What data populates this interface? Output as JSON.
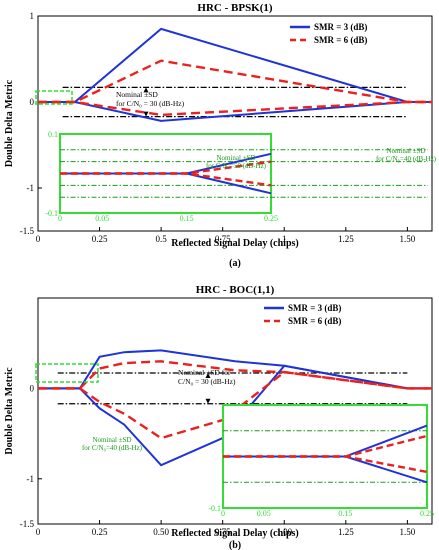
{
  "colors": {
    "smr3": "#1f33d6",
    "smr6": "#e8231f",
    "nominal": "#000000",
    "inset_box": "#33dd33",
    "inset_ref": "#1a9b1a",
    "axis": "#000000"
  },
  "chart_data": [
    {
      "type": "line",
      "title": "HRC - BPSK(1)",
      "xlabel": "Reflected Signal Delay (chips)",
      "ylabel": "Double Delta Metric",
      "xlim": [
        0,
        1.6
      ],
      "ylim": [
        -1.5,
        1
      ],
      "xticks": [
        "0",
        "0.25",
        "0.5",
        "0.75",
        "1",
        "1.25",
        "1.50"
      ],
      "yticks": [
        "1",
        "0",
        "-1",
        "-1.5"
      ],
      "caption": "(a)",
      "legend_position": "top-right",
      "legend": [
        {
          "label": "SMR = 3 (dB)",
          "series": "smr3"
        },
        {
          "label": "SMR = 6 (dB)",
          "series": "smr6"
        }
      ],
      "series": [
        {
          "id": "smr3_up",
          "group": "smr3",
          "style": "solid",
          "x": [
            0,
            0.15,
            0.5,
            1.5,
            1.6
          ],
          "y": [
            0,
            0,
            0.85,
            0,
            0
          ]
        },
        {
          "id": "smr3_lo",
          "group": "smr3",
          "style": "solid",
          "x": [
            0,
            0.15,
            0.5,
            1.5,
            1.6
          ],
          "y": [
            0,
            0,
            -0.22,
            0,
            0
          ]
        },
        {
          "id": "smr6_up",
          "group": "smr6",
          "style": "dashed",
          "x": [
            0,
            0.15,
            0.5,
            1.5,
            1.6
          ],
          "y": [
            0,
            0,
            0.48,
            0,
            0
          ]
        },
        {
          "id": "smr6_lo",
          "group": "smr6",
          "style": "dashed",
          "x": [
            0,
            0.15,
            0.5,
            1.5,
            1.6
          ],
          "y": [
            0,
            0,
            -0.15,
            0,
            0
          ]
        }
      ],
      "nominal": {
        "upper": 0.17,
        "lower": -0.17,
        "x_range": [
          0.1,
          1.5
        ],
        "label_lines": [
          "Nominal ±SD",
          "for C/N₀ = 30 (dB-Hz)"
        ]
      },
      "inset": {
        "xlim": [
          0,
          0.25
        ],
        "ylim": [
          -0.1,
          0.1
        ],
        "xticks": [
          "0",
          "0.05",
          "0.15",
          "0.25"
        ],
        "yticks": [
          "0.1",
          "-0.1"
        ],
        "series": [
          {
            "id": "smr3_up",
            "group": "smr3",
            "style": "solid",
            "x": [
              0,
              0.15,
              0.25
            ],
            "y": [
              0,
              0,
              0.05
            ]
          },
          {
            "id": "smr3_lo",
            "group": "smr3",
            "style": "solid",
            "x": [
              0,
              0.15,
              0.25
            ],
            "y": [
              0,
              0,
              -0.05
            ]
          },
          {
            "id": "smr6_up",
            "group": "smr6",
            "style": "dashed",
            "x": [
              0,
              0.15,
              0.25
            ],
            "y": [
              0,
              0,
              0.03
            ]
          },
          {
            "id": "smr6_lo",
            "group": "smr6",
            "style": "dashed",
            "x": [
              0,
              0.15,
              0.25
            ],
            "y": [
              0,
              0,
              -0.03
            ]
          }
        ],
        "ref_lines": [
          0.06,
          0.03,
          -0.03,
          -0.06
        ],
        "notes": [
          {
            "lines": [
              "Nominal ±SD",
              "for C/N₀=50 (dB-Hz)"
            ]
          },
          {
            "lines": [
              "Nominal ±SD",
              "for C/N₀=40 (dB-Hz)"
            ]
          }
        ]
      }
    },
    {
      "type": "line",
      "title": "HRC - BOC(1,1)",
      "xlabel": "Reflected Signal Delay (chips)",
      "ylabel": "Double Delta Metric",
      "xlim": [
        0,
        1.6
      ],
      "ylim": [
        -1.5,
        1
      ],
      "xticks": [
        "0",
        "0.25",
        "0.50",
        "0.75",
        "1.00",
        "1.25",
        "1.50"
      ],
      "yticks": [
        "0",
        "-1",
        "-1.5"
      ],
      "caption": "(b)",
      "legend_position": "top-right",
      "legend": [
        {
          "label": "SMR = 3 (dB)",
          "series": "smr3"
        },
        {
          "label": "SMR = 6 (dB)",
          "series": "smr6"
        }
      ],
      "series": [
        {
          "id": "smr3_a",
          "group": "smr3",
          "style": "solid",
          "x": [
            0,
            0.17,
            0.25,
            0.35,
            0.5,
            0.8,
            1.0,
            1.5,
            1.6
          ],
          "y": [
            0,
            0,
            0.35,
            0.4,
            0.42,
            0.3,
            0.25,
            0,
            0
          ]
        },
        {
          "id": "smr3_b",
          "group": "smr3",
          "style": "solid",
          "x": [
            0,
            0.17,
            0.25,
            0.35,
            0.5,
            0.75,
            1.0,
            1.5,
            1.6
          ],
          "y": [
            0,
            0,
            -0.22,
            -0.4,
            -0.85,
            -0.55,
            0.25,
            0,
            0
          ]
        },
        {
          "id": "smr6_a",
          "group": "smr6",
          "style": "dashed",
          "x": [
            0,
            0.17,
            0.25,
            0.35,
            0.5,
            0.8,
            1.0,
            1.5,
            1.6
          ],
          "y": [
            0,
            0,
            0.22,
            0.28,
            0.3,
            0.2,
            0.18,
            0,
            0
          ]
        },
        {
          "id": "smr6_b",
          "group": "smr6",
          "style": "dashed",
          "x": [
            0,
            0.17,
            0.25,
            0.35,
            0.5,
            0.75,
            1.0,
            1.5,
            1.6
          ],
          "y": [
            0,
            0,
            -0.15,
            -0.28,
            -0.55,
            -0.35,
            0.18,
            0,
            0
          ]
        }
      ],
      "nominal": {
        "upper": 0.17,
        "lower": -0.17,
        "x_range": [
          0.08,
          1.5
        ],
        "label_lines": [
          "Nominal ±SD  for",
          "C/N₀ = 30 (dB-Hz)"
        ]
      },
      "inset": {
        "xlim": [
          0,
          0.25
        ],
        "ylim": [
          -0.1,
          0.1
        ],
        "xticks": [
          "0",
          "0.05",
          "0.15",
          "0.25"
        ],
        "yticks": [
          "-0.1"
        ],
        "series": [
          {
            "id": "smr3_a",
            "group": "smr3",
            "style": "solid",
            "x": [
              0,
              0.15,
              0.25
            ],
            "y": [
              0,
              0,
              0.06
            ]
          },
          {
            "id": "smr3_b",
            "group": "smr3",
            "style": "solid",
            "x": [
              0,
              0.15,
              0.25
            ],
            "y": [
              0,
              0,
              -0.05
            ]
          },
          {
            "id": "smr6_a",
            "group": "smr6",
            "style": "dashed",
            "x": [
              0,
              0.15,
              0.25
            ],
            "y": [
              0,
              0,
              0.04
            ]
          },
          {
            "id": "smr6_b",
            "group": "smr6",
            "style": "dashed",
            "x": [
              0,
              0.15,
              0.25
            ],
            "y": [
              0,
              0,
              -0.03
            ]
          }
        ],
        "ref_lines": [
          0.05,
          -0.05
        ],
        "notes": [
          {
            "lines": [
              "Nominal ±SD",
              "for C/N₀=40 (dB-Hz)"
            ]
          }
        ]
      }
    }
  ]
}
